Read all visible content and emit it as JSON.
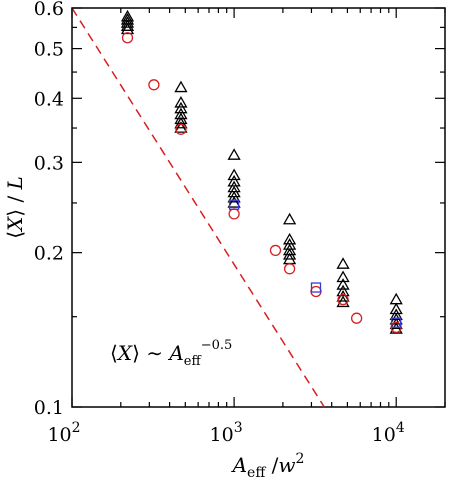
{
  "chart_data": {
    "type": "scatter",
    "xlabel": "A_eff / w^2",
    "ylabel": "⟨X⟩ / L",
    "xscale": "log",
    "yscale": "log",
    "xlim": [
      100,
      20000
    ],
    "ylim": [
      0.1,
      0.6
    ],
    "grid": false,
    "legend": null,
    "x_ticks": [
      {
        "value": 100,
        "base": "10",
        "exp": "2"
      },
      {
        "value": 1000,
        "base": "10",
        "exp": "3"
      },
      {
        "value": 10000,
        "base": "10",
        "exp": "4"
      }
    ],
    "y_ticks": [
      {
        "value": 0.1,
        "label": "0.1"
      },
      {
        "value": 0.2,
        "label": "0.2"
      },
      {
        "value": 0.3,
        "label": "0.3"
      },
      {
        "value": 0.4,
        "label": "0.4"
      },
      {
        "value": 0.5,
        "label": "0.5"
      },
      {
        "value": 0.6,
        "label": "0.6"
      }
    ],
    "annotation": {
      "text": "⟨X⟩ ∼ A_eff^-0.5"
    },
    "series": [
      {
        "marker": "triangle",
        "color": "#000000",
        "points": [
          {
            "x": 220,
            "y": 0.545
          },
          {
            "x": 220,
            "y": 0.553
          },
          {
            "x": 220,
            "y": 0.561
          },
          {
            "x": 220,
            "y": 0.569
          },
          {
            "x": 220,
            "y": 0.577
          },
          {
            "x": 470,
            "y": 0.35
          },
          {
            "x": 470,
            "y": 0.357
          },
          {
            "x": 470,
            "y": 0.364
          },
          {
            "x": 470,
            "y": 0.372
          },
          {
            "x": 470,
            "y": 0.382
          },
          {
            "x": 470,
            "y": 0.392
          },
          {
            "x": 470,
            "y": 0.42
          },
          {
            "x": 1000,
            "y": 0.25
          },
          {
            "x": 1000,
            "y": 0.256
          },
          {
            "x": 1000,
            "y": 0.262
          },
          {
            "x": 1000,
            "y": 0.268
          },
          {
            "x": 1000,
            "y": 0.275
          },
          {
            "x": 1000,
            "y": 0.283
          },
          {
            "x": 1000,
            "y": 0.31
          },
          {
            "x": 2200,
            "y": 0.194
          },
          {
            "x": 2200,
            "y": 0.198
          },
          {
            "x": 2200,
            "y": 0.202
          },
          {
            "x": 2200,
            "y": 0.207
          },
          {
            "x": 2200,
            "y": 0.212
          },
          {
            "x": 2200,
            "y": 0.232
          },
          {
            "x": 4700,
            "y": 0.16
          },
          {
            "x": 4700,
            "y": 0.164
          },
          {
            "x": 4700,
            "y": 0.168
          },
          {
            "x": 4700,
            "y": 0.173
          },
          {
            "x": 4700,
            "y": 0.179
          },
          {
            "x": 4700,
            "y": 0.19
          },
          {
            "x": 10000,
            "y": 0.142
          },
          {
            "x": 10000,
            "y": 0.145
          },
          {
            "x": 10000,
            "y": 0.148
          },
          {
            "x": 10000,
            "y": 0.151
          },
          {
            "x": 10000,
            "y": 0.155
          },
          {
            "x": 10000,
            "y": 0.162
          }
        ]
      },
      {
        "marker": "circle",
        "color": "#d62020",
        "points": [
          {
            "x": 220,
            "y": 0.525
          },
          {
            "x": 320,
            "y": 0.425
          },
          {
            "x": 470,
            "y": 0.348
          },
          {
            "x": 1000,
            "y": 0.238
          },
          {
            "x": 1800,
            "y": 0.202
          },
          {
            "x": 2200,
            "y": 0.186
          },
          {
            "x": 3200,
            "y": 0.168
          },
          {
            "x": 4700,
            "y": 0.162
          },
          {
            "x": 5700,
            "y": 0.149
          },
          {
            "x": 10000,
            "y": 0.143
          }
        ]
      },
      {
        "marker": "square",
        "color": "#3a3ad0",
        "points": [
          {
            "x": 1000,
            "y": 0.248
          },
          {
            "x": 3200,
            "y": 0.171
          },
          {
            "x": 10000,
            "y": 0.146
          }
        ]
      }
    ],
    "fit_line": {
      "style": "dashed",
      "color": "#d62020",
      "exponent": -0.5,
      "points": [
        {
          "x": 100,
          "y": 0.6
        },
        {
          "x": 3600,
          "y": 0.1
        }
      ]
    }
  }
}
